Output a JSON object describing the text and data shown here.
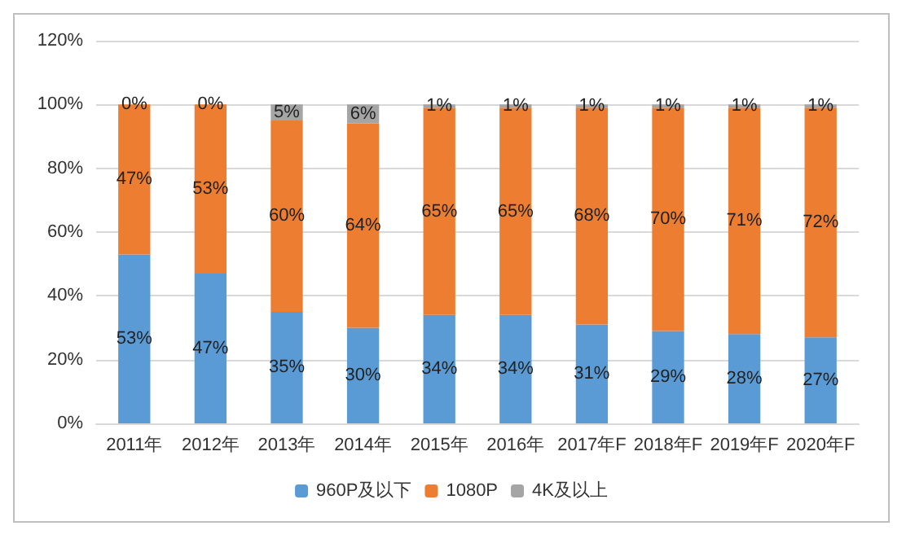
{
  "chart_data": {
    "type": "bar",
    "stacked": true,
    "categories": [
      "2011年",
      "2012年",
      "2013年",
      "2014年",
      "2015年",
      "2016年",
      "2017年F",
      "2018年F",
      "2019年F",
      "2020年F"
    ],
    "series": [
      {
        "name": "960P及以下",
        "color": "#5b9bd5",
        "values": [
          53,
          47,
          35,
          30,
          34,
          34,
          31,
          29,
          28,
          27
        ],
        "value_labels": [
          "53%",
          "47%",
          "35%",
          "30%",
          "34%",
          "34%",
          "31%",
          "29%",
          "28%",
          "27%"
        ]
      },
      {
        "name": "1080P",
        "color": "#ed7d31",
        "values": [
          47,
          53,
          60,
          64,
          65,
          65,
          68,
          70,
          71,
          72
        ],
        "value_labels": [
          "47%",
          "53%",
          "60%",
          "64%",
          "65%",
          "65%",
          "68%",
          "70%",
          "71%",
          "72%"
        ]
      },
      {
        "name": "4K及以上",
        "color": "#a5a5a5",
        "values": [
          0,
          0,
          5,
          6,
          1,
          1,
          1,
          1,
          1,
          1
        ],
        "value_labels": [
          "0%",
          "0%",
          "5%",
          "6%",
          "1%",
          "1%",
          "1%",
          "1%",
          "1%",
          "1%"
        ]
      }
    ],
    "ylim": [
      0,
      120
    ],
    "yticks": [
      {
        "value": 0,
        "label": "0%"
      },
      {
        "value": 20,
        "label": "20%"
      },
      {
        "value": 40,
        "label": "40%"
      },
      {
        "value": 60,
        "label": "60%"
      },
      {
        "value": 80,
        "label": "80%"
      },
      {
        "value": 100,
        "label": "100%"
      },
      {
        "value": 120,
        "label": "120%"
      }
    ],
    "grid": "y",
    "legend": "bottom"
  }
}
